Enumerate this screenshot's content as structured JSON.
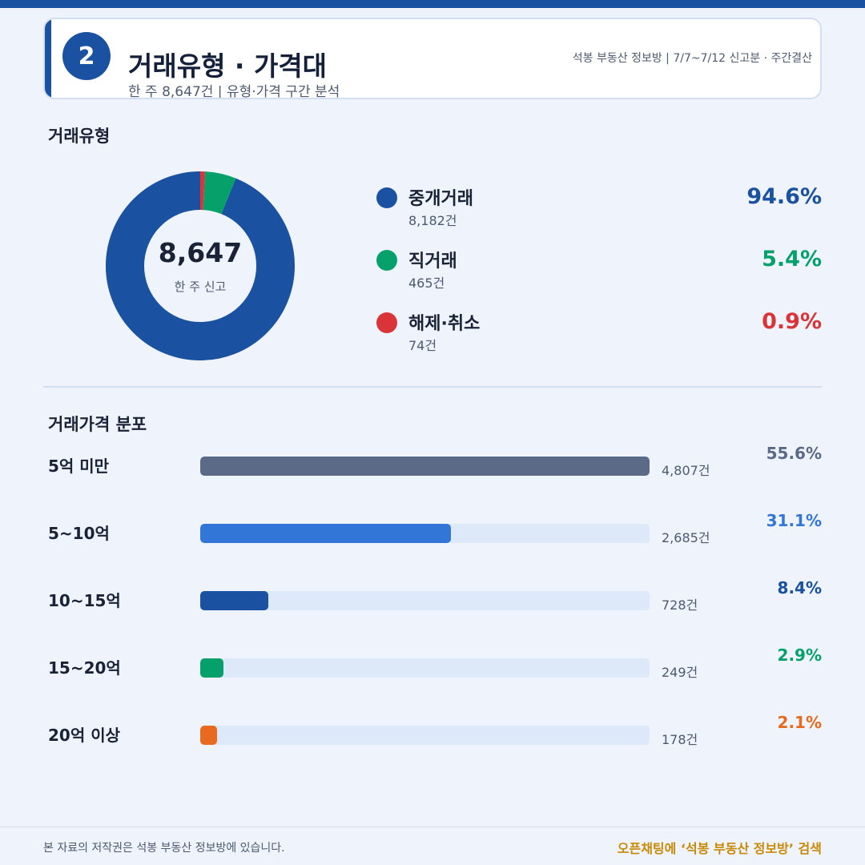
{
  "header": {
    "badge": "2",
    "title": "거래유형 · 가격대",
    "subtitle": "한 주 8,647건 | 유형·가격 구간 분석",
    "meta": "석봉 부동산 정보방 | 7/7~7/12 신고분 · 주간결산"
  },
  "chart_data": [
    {
      "type": "pie",
      "title": "거래유형",
      "center_value": "8,647",
      "center_label": "한 주 신고",
      "slices": [
        {
          "name": "중개거래",
          "count_label": "8,182건",
          "value": 8182,
          "pct_label": "94.6%",
          "color": "#1a51a0"
        },
        {
          "name": "직거래",
          "count_label": "465건",
          "value": 465,
          "pct_label": "5.4%",
          "color": "#06a06b"
        },
        {
          "name": "해제·취소",
          "count_label": "74건",
          "value": 74,
          "pct_label": "0.9%",
          "color": "#d93438"
        }
      ]
    },
    {
      "type": "bar",
      "title": "거래가격 분포",
      "bars": [
        {
          "name": "5억 미만",
          "count_label": "4,807건",
          "value": 4807,
          "pct_label": "55.6%",
          "color": "#5a6a87"
        },
        {
          "name": "5~10억",
          "count_label": "2,685건",
          "value": 2685,
          "pct_label": "31.1%",
          "color": "#3277d7"
        },
        {
          "name": "10~15억",
          "count_label": "728건",
          "value": 728,
          "pct_label": "8.4%",
          "color": "#1a51a0"
        },
        {
          "name": "15~20억",
          "count_label": "249건",
          "value": 249,
          "pct_label": "2.9%",
          "color": "#06a06b"
        },
        {
          "name": "20억 이상",
          "count_label": "178건",
          "value": 178,
          "pct_label": "2.1%",
          "color": "#e86a1e"
        }
      ]
    }
  ],
  "footer": {
    "copyright": "본 자료의 저작권은 석봉 부동산 정보방에 있습니다.",
    "cta": "오픈채팅에 ‘석봉 부동산 정보방’ 검색"
  },
  "colors": {
    "brand": "#1a51a0",
    "background": "#eef3fc",
    "cta": "#c98a05"
  }
}
